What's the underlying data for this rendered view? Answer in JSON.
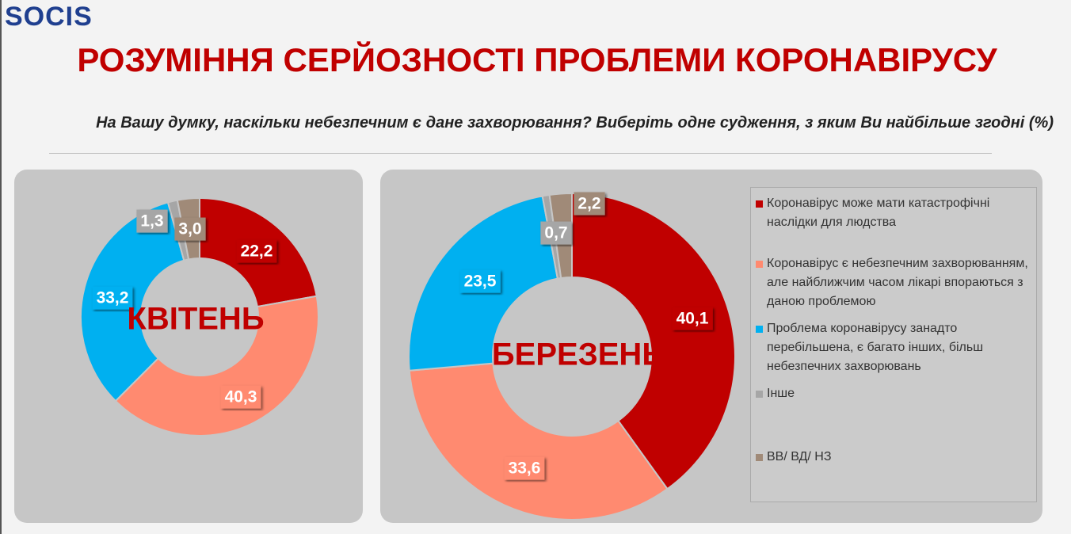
{
  "header": {
    "logo": "SOCIS",
    "title": "РОЗУМІННЯ СЕРЙОЗНОСТІ ПРОБЛЕМИ КОРОНАВІРУСУ",
    "subtitle": "На Вашу думку, наскільки небезпечним є дане захворювання? Виберіть одне судження, з яким Ви найбільше згодні (%)"
  },
  "chart_data": [
    {
      "type": "pie",
      "title": "КВІТЕНЬ",
      "values": [
        22.2,
        40.3,
        33.2,
        1.3,
        3.0
      ],
      "value_labels": [
        "22,2",
        "40,3",
        "33,2",
        "1,3",
        "3,0"
      ],
      "colors": [
        "#c00000",
        "#ff8a70",
        "#00b0f0",
        "#a6a6a6",
        "#a08a78"
      ]
    },
    {
      "type": "pie",
      "title": "БЕРЕЗЕНЬ",
      "categories": [
        "Коронавірус може мати катастрофічні наслідки для людства",
        "Коронавірус є небезпечним захворюванням, але найближчим часом лікарі впораються з даною проблемою",
        "Проблема коронавірусу занадто перебільшена, є багато інших, більш небезпечних захворювань",
        "Інше",
        "ВВ/ ВД/ НЗ"
      ],
      "values": [
        40.1,
        33.6,
        23.5,
        0.7,
        2.2
      ],
      "value_labels": [
        "40,1",
        "33,6",
        "23,5",
        "0,7",
        "2,2"
      ],
      "colors": [
        "#c00000",
        "#ff8a70",
        "#00b0f0",
        "#a6a6a6",
        "#a08a78"
      ]
    }
  ]
}
